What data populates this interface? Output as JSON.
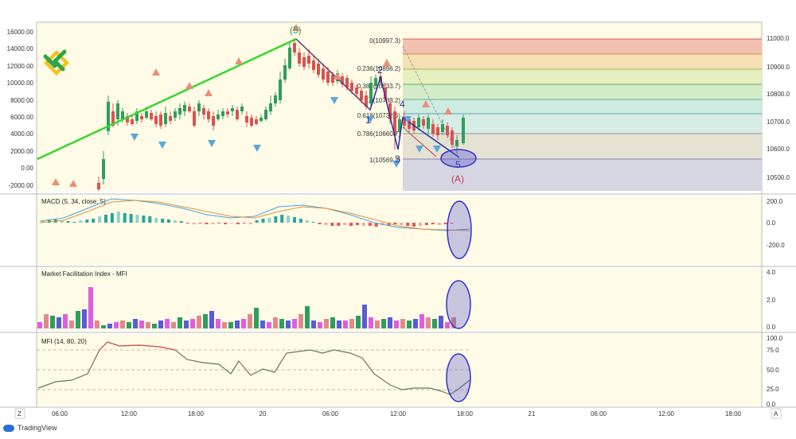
{
  "main": {
    "price_ticks": [
      "16000.00",
      "14000.00",
      "12000.00",
      "10000.00",
      "8000.00",
      "6000.00",
      "4000.00",
      "2000.00",
      "0.00",
      "-2000.00"
    ],
    "right_ticks": [
      "11000.0",
      "10900.0",
      "10800.0",
      "10700.0",
      "10600.0",
      "10500.0"
    ],
    "wave_labels": {
      "w5_top": "(5)",
      "w2": "2",
      "w4": "4",
      "w1": "1",
      "w3": "3",
      "w5_bottom": "5",
      "wA": "(A)"
    },
    "fib_levels": [
      {
        "label": "0(10997.3)",
        "color": "#f3c1b0"
      },
      {
        "label": "0.236(10896.2)",
        "color": "#f6e0b3"
      },
      {
        "label": "0.382(10833.7)",
        "color": "#e6efbe"
      },
      {
        "label": "0.5(10783.2)",
        "color": "#d4ebc8"
      },
      {
        "label": "0.618(10732.6)",
        "color": "#cdebe0"
      },
      {
        "label": "0.786(10660.7)",
        "color": "#e5e2d4"
      },
      {
        "label": "1(10569.3)",
        "color": "#d6d6e2"
      }
    ]
  },
  "macd": {
    "title": "MACD (5, 34, close, 5)",
    "ticks": [
      "200.0",
      "0.0",
      "-200.0"
    ]
  },
  "mfi_index": {
    "title": "Market Facilitation Index - MFI",
    "ticks": [
      "4.0",
      "2.0",
      "0.0"
    ]
  },
  "mfi_osc": {
    "title": "MFI (14, 80, 20)",
    "ticks": [
      "100.0",
      "75.0",
      "50.0",
      "25.0",
      "0.0"
    ]
  },
  "time_axis": {
    "left_btn": "Z",
    "right_btn": "A",
    "labels": [
      "06:00",
      "12:00",
      "18:00",
      "20",
      "06:00",
      "12:00",
      "18:00",
      "21",
      "06:00",
      "12:00",
      "18:00"
    ]
  },
  "brand": {
    "name": "TradingView"
  },
  "colors": {
    "bg": "#fffbe6",
    "up": "#2e9e5e",
    "down": "#d9534f",
    "trend": "#39d630",
    "wave": "#2a2fa0",
    "circle": "#4a4bd1"
  }
}
